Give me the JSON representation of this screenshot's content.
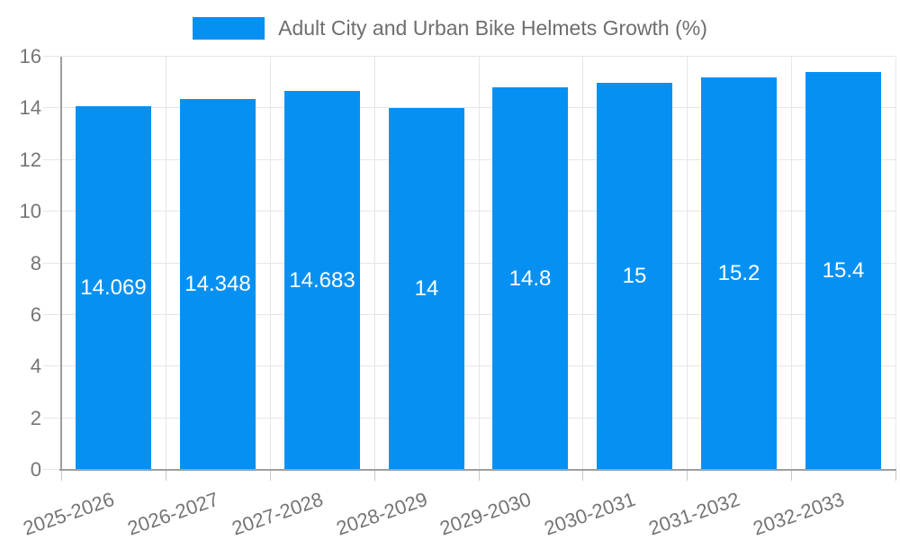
{
  "chart_data": {
    "type": "bar",
    "title": "Adult City and Urban Bike Helmets Growth (%)",
    "categories": [
      "2025-2026",
      "2026-2027",
      "2027-2028",
      "2028-2029",
      "2029-2030",
      "2030-2031",
      "2031-2032",
      "2032-2033"
    ],
    "values": [
      14.069,
      14.348,
      14.683,
      14,
      14.8,
      15,
      15.2,
      15.4
    ],
    "value_labels": [
      "14.069",
      "14.348",
      "14.683",
      "14",
      "14.8",
      "15",
      "15.2",
      "15.4"
    ],
    "xlabel": "",
    "ylabel": "",
    "ylim": [
      0,
      16
    ],
    "ytick_labels": [
      "0",
      "2",
      "4",
      "6",
      "8",
      "10",
      "12",
      "14",
      "16"
    ],
    "grid": true,
    "legend_position": "top",
    "colors": {
      "bar": "#0691f2",
      "bar_label": "#ffffff",
      "grid": "#e6e6e6",
      "axis": "#9e9e9e",
      "tick_mark": "#c9c9c9",
      "tick_text": "#757575",
      "legend_text": "#6e6e6e"
    }
  }
}
